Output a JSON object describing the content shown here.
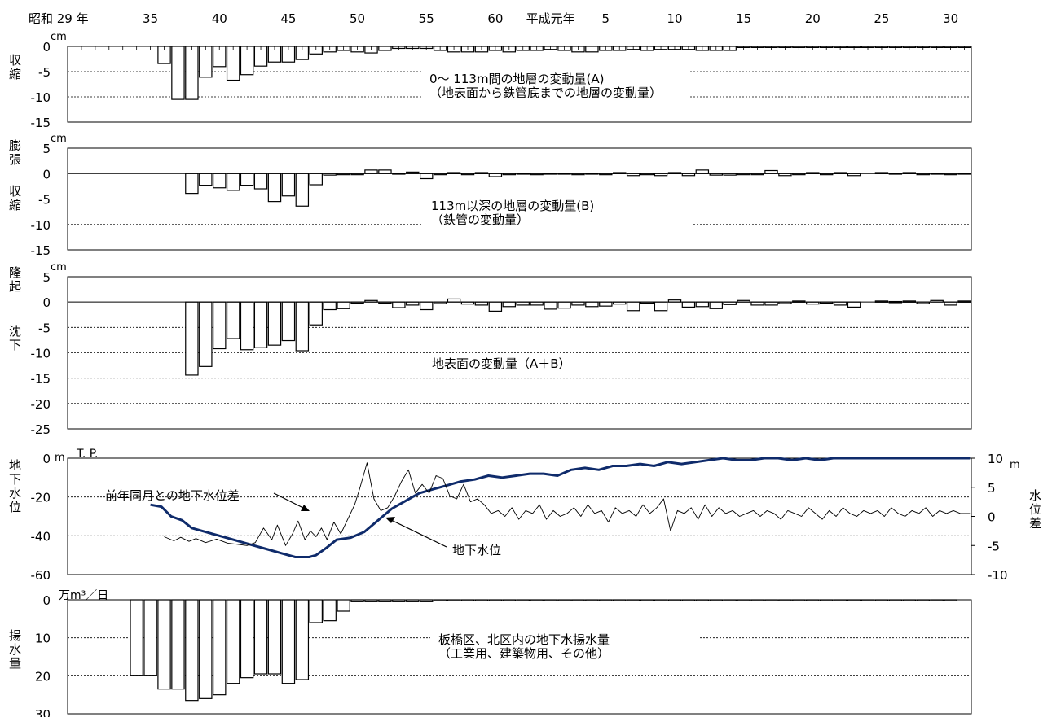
{
  "top_axis": {
    "labels": [
      "昭和 29 年",
      "35",
      "40",
      "45",
      "50",
      "55",
      "60",
      "平成元年",
      "5",
      "10",
      "15",
      "20",
      "25",
      "30"
    ],
    "years": [
      1954,
      1960,
      1965,
      1970,
      1975,
      1980,
      1985,
      1989,
      1993,
      1998,
      2003,
      2008,
      2013,
      2018
    ]
  },
  "chart_data": [
    {
      "id": "panelA",
      "type": "bar",
      "unit": "cm",
      "ylim": [
        -15,
        0
      ],
      "yticks": [
        0,
        -5,
        -10,
        -15
      ],
      "side_label_neg": [
        "収",
        "縮"
      ],
      "annotation": [
        "0～ 113m間の地層の変動量(A)",
        "（地表面から鉄管底までの地層の変動量）"
      ],
      "x": [
        1961,
        1962,
        1963,
        1964,
        1965,
        1966,
        1967,
        1968,
        1969,
        1970,
        1971,
        1972,
        1973,
        1974,
        1975,
        1976,
        1977,
        1978,
        1979,
        1980,
        1981,
        1982,
        1983,
        1984,
        1985,
        1986,
        1987,
        1988,
        1989,
        1990,
        1991,
        1992,
        1993,
        1994,
        1995,
        1996,
        1997,
        1998,
        1999,
        2000,
        2001,
        2002,
        2003,
        2004,
        2005,
        2006,
        2007,
        2008,
        2009,
        2010,
        2011,
        2012,
        2013,
        2014,
        2015,
        2016,
        2017,
        2018,
        2019
      ],
      "values": [
        -3.4,
        -10.5,
        -10.5,
        -6.1,
        -4.0,
        -6.7,
        -5.6,
        -3.9,
        -3.1,
        -3.1,
        -2.6,
        -1.5,
        -1.1,
        -0.8,
        -1.1,
        -1.3,
        -0.8,
        -0.4,
        -0.4,
        -0.4,
        -0.8,
        -1.1,
        -1.1,
        -1.1,
        -0.8,
        -1.1,
        -0.8,
        -0.8,
        -0.6,
        -0.8,
        -1.1,
        -1.1,
        -0.8,
        -0.8,
        -0.6,
        -0.8,
        -0.6,
        -0.6,
        -0.6,
        -0.8,
        -0.8,
        -0.8,
        -0.2,
        -0.2,
        -0.2,
        -0.2,
        -0.2,
        -0.2,
        -0.2,
        -0.2,
        -0.2,
        -0.2,
        -0.2,
        -0.2,
        -0.2,
        -0.2,
        -0.2,
        -0.2,
        -0.2
      ]
    },
    {
      "id": "panelB",
      "type": "bar",
      "unit": "cm",
      "ylim": [
        -15,
        5
      ],
      "yticks": [
        5,
        0,
        -5,
        -10,
        -15
      ],
      "side_label_pos": [
        "膨",
        "張"
      ],
      "side_label_neg": [
        "収",
        "縮"
      ],
      "annotation": [
        "113m以深の地層の変動量(B)",
        "（鉄管の変動量）"
      ],
      "x": [
        1963,
        1964,
        1965,
        1966,
        1967,
        1968,
        1969,
        1970,
        1971,
        1972,
        1973,
        1974,
        1975,
        1976,
        1977,
        1978,
        1979,
        1980,
        1981,
        1982,
        1983,
        1984,
        1985,
        1986,
        1987,
        1988,
        1989,
        1990,
        1991,
        1992,
        1993,
        1994,
        1995,
        1996,
        1997,
        1998,
        1999,
        2000,
        2001,
        2002,
        2003,
        2004,
        2005,
        2006,
        2007,
        2008,
        2009,
        2010,
        2011,
        2013,
        2014,
        2015,
        2016,
        2017,
        2018,
        2019
      ],
      "values": [
        -3.9,
        -2.3,
        -2.8,
        -3.3,
        -2.3,
        -3.0,
        -5.5,
        -4.4,
        -6.4,
        -2.2,
        -0.3,
        -0.2,
        -0.2,
        0.7,
        0.7,
        0.1,
        0.3,
        -1.0,
        -0.2,
        0.2,
        -0.1,
        0.2,
        -0.6,
        -0.2,
        0.1,
        0.0,
        0.1,
        0.1,
        -0.1,
        0.1,
        -0.1,
        0.2,
        -0.4,
        -0.2,
        -0.4,
        0.2,
        -0.4,
        0.7,
        -0.3,
        -0.3,
        -0.2,
        -0.2,
        0.6,
        -0.4,
        -0.1,
        0.2,
        -0.1,
        0.2,
        -0.4,
        0.2,
        0.1,
        0.2,
        -0.2,
        0.1,
        -0.2,
        0.1
      ]
    },
    {
      "id": "panelC",
      "type": "bar",
      "unit": "cm",
      "ylim": [
        -25,
        5
      ],
      "yticks": [
        5,
        0,
        -5,
        -10,
        -15,
        -20,
        -25
      ],
      "side_label_pos": [
        "隆",
        "起"
      ],
      "side_label_neg": [
        "沈",
        "下"
      ],
      "annotation": [
        "地表面の変動量（A＋B）"
      ],
      "x": [
        1963,
        1964,
        1965,
        1966,
        1967,
        1968,
        1969,
        1970,
        1971,
        1972,
        1973,
        1974,
        1975,
        1976,
        1977,
        1978,
        1979,
        1980,
        1981,
        1982,
        1983,
        1984,
        1985,
        1986,
        1987,
        1988,
        1989,
        1990,
        1991,
        1992,
        1993,
        1994,
        1995,
        1996,
        1997,
        1998,
        1999,
        2000,
        2001,
        2002,
        2003,
        2004,
        2005,
        2006,
        2007,
        2008,
        2009,
        2010,
        2011,
        2013,
        2014,
        2015,
        2016,
        2017,
        2018,
        2019
      ],
      "values": [
        -14.4,
        -12.7,
        -9.2,
        -7.2,
        -9.4,
        -9.0,
        -8.5,
        -7.6,
        -9.6,
        -4.5,
        -1.5,
        -1.3,
        -0.2,
        0.3,
        -0.2,
        -1.1,
        -0.6,
        -1.5,
        -0.3,
        0.6,
        -0.4,
        -0.6,
        -1.8,
        -0.9,
        -0.6,
        -0.6,
        -1.4,
        -1.2,
        -0.6,
        -0.9,
        -0.8,
        -0.4,
        -1.7,
        -0.2,
        -1.7,
        0.4,
        -1.0,
        -0.9,
        -1.3,
        -0.5,
        0.3,
        -0.6,
        -0.6,
        -0.3,
        0.2,
        -0.4,
        -0.2,
        -0.6,
        -1.0,
        0.2,
        0.1,
        0.2,
        -0.3,
        0.3,
        -0.6,
        0.2
      ]
    },
    {
      "id": "panelD",
      "type": "line",
      "unit_left": "m",
      "unit_right": "m",
      "left_unit_label": "T. P.",
      "ylim": [
        -60,
        0
      ],
      "yticks": [
        0,
        -20,
        -40,
        -60
      ],
      "y2lim": [
        -10,
        10
      ],
      "y2ticks": [
        10,
        5,
        0,
        -5,
        -10
      ],
      "side_label_left": [
        "地",
        "下",
        "水",
        "位"
      ],
      "side_label_right": [
        "水",
        "位",
        "差"
      ],
      "legend": [
        "前年同月との地下水位差",
        "地下水位"
      ],
      "series": [
        {
          "name": "地下水位",
          "axis": "left",
          "x": [
            1960.0,
            1960.8,
            1961.5,
            1962.3,
            1963.0,
            1964.0,
            1965.0,
            1966.0,
            1967.5,
            1968.5,
            1969.5,
            1970.5,
            1971.5,
            1972.0,
            1972.8,
            1973.5,
            1974.5,
            1975.5,
            1976.5,
            1977.5,
            1978.5,
            1979.5,
            1980.5,
            1981.5,
            1982.5,
            1983.5,
            1984.5,
            1985.5,
            1986.5,
            1987.5,
            1988.5,
            1989.5,
            1990.5,
            1991.5,
            1992.5,
            1993.5,
            1994.5,
            1995.5,
            1996.5,
            1997.5,
            1998.5,
            1999.5,
            2000.5,
            2001.5,
            2002.5,
            2003.5,
            2004.5,
            2005.5,
            2006.5,
            2007.5,
            2008.5,
            2009.5,
            2010.5,
            2011.5,
            2012.5,
            2013.5,
            2014.5,
            2015.5,
            2016.5,
            2017.5,
            2018.5,
            2019.4
          ],
          "values": [
            -24,
            -25,
            -30,
            -32,
            -36,
            -38,
            -40,
            -42,
            -45,
            -47,
            -49,
            -51,
            -51,
            -50,
            -46,
            -42,
            -41,
            -38,
            -32,
            -26,
            -22,
            -18,
            -16,
            -14,
            -12,
            -11,
            -9,
            -10,
            -9,
            -8,
            -8,
            -9,
            -6,
            -5,
            -6,
            -4,
            -4,
            -3,
            -4,
            -2,
            -3,
            -2,
            -1,
            0,
            -1,
            -1,
            0,
            0,
            -1,
            0,
            -1,
            0,
            0,
            0,
            0,
            0,
            0,
            0,
            0,
            0,
            0,
            0
          ]
        },
        {
          "name": "前年同月との地下水位差",
          "axis": "right",
          "x": [
            1961.0,
            1961.7,
            1962.2,
            1962.8,
            1963.3,
            1964.0,
            1964.8,
            1965.6,
            1966.3,
            1967.0,
            1967.6,
            1968.2,
            1968.8,
            1969.2,
            1969.8,
            1970.3,
            1970.7,
            1971.2,
            1971.6,
            1972.0,
            1972.4,
            1972.8,
            1973.3,
            1973.8,
            1974.3,
            1974.8,
            1975.2,
            1975.7,
            1976.2,
            1976.7,
            1977.2,
            1977.7,
            1978.2,
            1978.7,
            1979.2,
            1979.7,
            1980.2,
            1980.7,
            1981.2,
            1981.7,
            1982.2,
            1982.7,
            1983.2,
            1983.7,
            1984.2,
            1984.7,
            1985.2,
            1985.7,
            1986.2,
            1986.7,
            1987.2,
            1987.7,
            1988.2,
            1988.7,
            1989.2,
            1989.7,
            1990.2,
            1990.7,
            1991.2,
            1991.7,
            1992.2,
            1992.7,
            1993.2,
            1993.7,
            1994.2,
            1994.7,
            1995.2,
            1995.7,
            1996.2,
            1996.7,
            1997.2,
            1997.7,
            1998.2,
            1998.7,
            1999.2,
            1999.7,
            2000.2,
            2000.7,
            2001.2,
            2001.7,
            2002.2,
            2002.7,
            2003.2,
            2003.7,
            2004.2,
            2004.7,
            2005.2,
            2005.7,
            2006.2,
            2006.7,
            2007.2,
            2007.7,
            2008.2,
            2008.7,
            2009.2,
            2009.7,
            2010.2,
            2010.7,
            2011.2,
            2011.7,
            2012.2,
            2012.7,
            2013.2,
            2013.7,
            2014.2,
            2014.7,
            2015.2,
            2015.7,
            2016.2,
            2016.7,
            2017.2,
            2017.7,
            2018.2,
            2018.7,
            2019.4
          ],
          "values": [
            -3.5,
            -4.2,
            -3.6,
            -4.3,
            -3.8,
            -4.5,
            -3.9,
            -4.6,
            -4.8,
            -5.0,
            -4.5,
            -2.0,
            -4.0,
            -1.5,
            -5.0,
            -3.0,
            -0.8,
            -4.0,
            -2.5,
            -3.5,
            -2.0,
            -4.0,
            -1.0,
            -3.0,
            -0.5,
            2.0,
            5.0,
            9.2,
            3.0,
            1.0,
            1.5,
            3.5,
            6.0,
            8.0,
            4.0,
            5.5,
            4.0,
            7.0,
            6.5,
            3.5,
            3.0,
            5.5,
            2.5,
            3.0,
            2.0,
            0.5,
            1.0,
            0.0,
            1.5,
            -0.5,
            1.0,
            0.5,
            2.0,
            -0.5,
            1.0,
            0.0,
            0.5,
            1.5,
            0.0,
            2.0,
            0.5,
            1.0,
            -1.0,
            1.5,
            0.5,
            1.0,
            0.0,
            2.0,
            0.5,
            1.5,
            3.0,
            -2.5,
            1.0,
            0.5,
            1.5,
            -0.5,
            2.0,
            0.0,
            1.5,
            0.5,
            1.0,
            0.0,
            0.5,
            1.0,
            0.0,
            1.0,
            0.5,
            -0.5,
            1.0,
            0.5,
            0.0,
            1.5,
            0.5,
            -0.5,
            1.0,
            0.0,
            1.5,
            0.5,
            0.0,
            1.0,
            0.5,
            1.0,
            0.0,
            1.5,
            0.5,
            0.0,
            1.0,
            0.5,
            1.5,
            0.0,
            1.0,
            0.5,
            1.0,
            0.5,
            0.5
          ]
        }
      ]
    },
    {
      "id": "panelE",
      "type": "bar",
      "unit": "万m³／日",
      "ylim": [
        0,
        30
      ],
      "yticks": [
        0,
        10,
        20,
        30
      ],
      "inverted": true,
      "side_label": [
        "揚",
        "水",
        "量"
      ],
      "annotation": [
        "板橋区、北区内の地下水揚水量",
        "（工業用、建築物用、その他）"
      ],
      "x": [
        1959,
        1960,
        1961,
        1962,
        1963,
        1964,
        1965,
        1966,
        1967,
        1968,
        1969,
        1970,
        1971,
        1972,
        1973,
        1974,
        1975,
        1976,
        1977,
        1978,
        1979,
        1980,
        1981,
        1982,
        1983,
        1984,
        1985,
        1986,
        1987,
        1988,
        1989,
        1990,
        1991,
        1992,
        1993,
        1994,
        1995,
        1996,
        1997,
        1998,
        1999,
        2000,
        2001,
        2002,
        2003,
        2004,
        2005,
        2006,
        2007,
        2008,
        2009,
        2010,
        2011,
        2012,
        2013,
        2014,
        2015,
        2016,
        2017,
        2018
      ],
      "values": [
        20.0,
        20.0,
        23.5,
        23.5,
        26.5,
        26.0,
        25.0,
        22.0,
        20.5,
        19.5,
        19.5,
        22.0,
        21.0,
        6.0,
        5.5,
        3.0,
        0.5,
        0.5,
        0.5,
        0.5,
        0.5,
        0.5,
        0.3,
        0.3,
        0.3,
        0.3,
        0.3,
        0.3,
        0.3,
        0.3,
        0.3,
        0.3,
        0.3,
        0.3,
        0.3,
        0.3,
        0.3,
        0.3,
        0.3,
        0.3,
        0.3,
        0.3,
        0.3,
        0.3,
        0.3,
        0.3,
        0.3,
        0.3,
        0.3,
        0.3,
        0.3,
        0.3,
        0.3,
        0.3,
        0.3,
        0.3,
        0.3,
        0.3,
        0.3,
        0.3
      ]
    }
  ]
}
